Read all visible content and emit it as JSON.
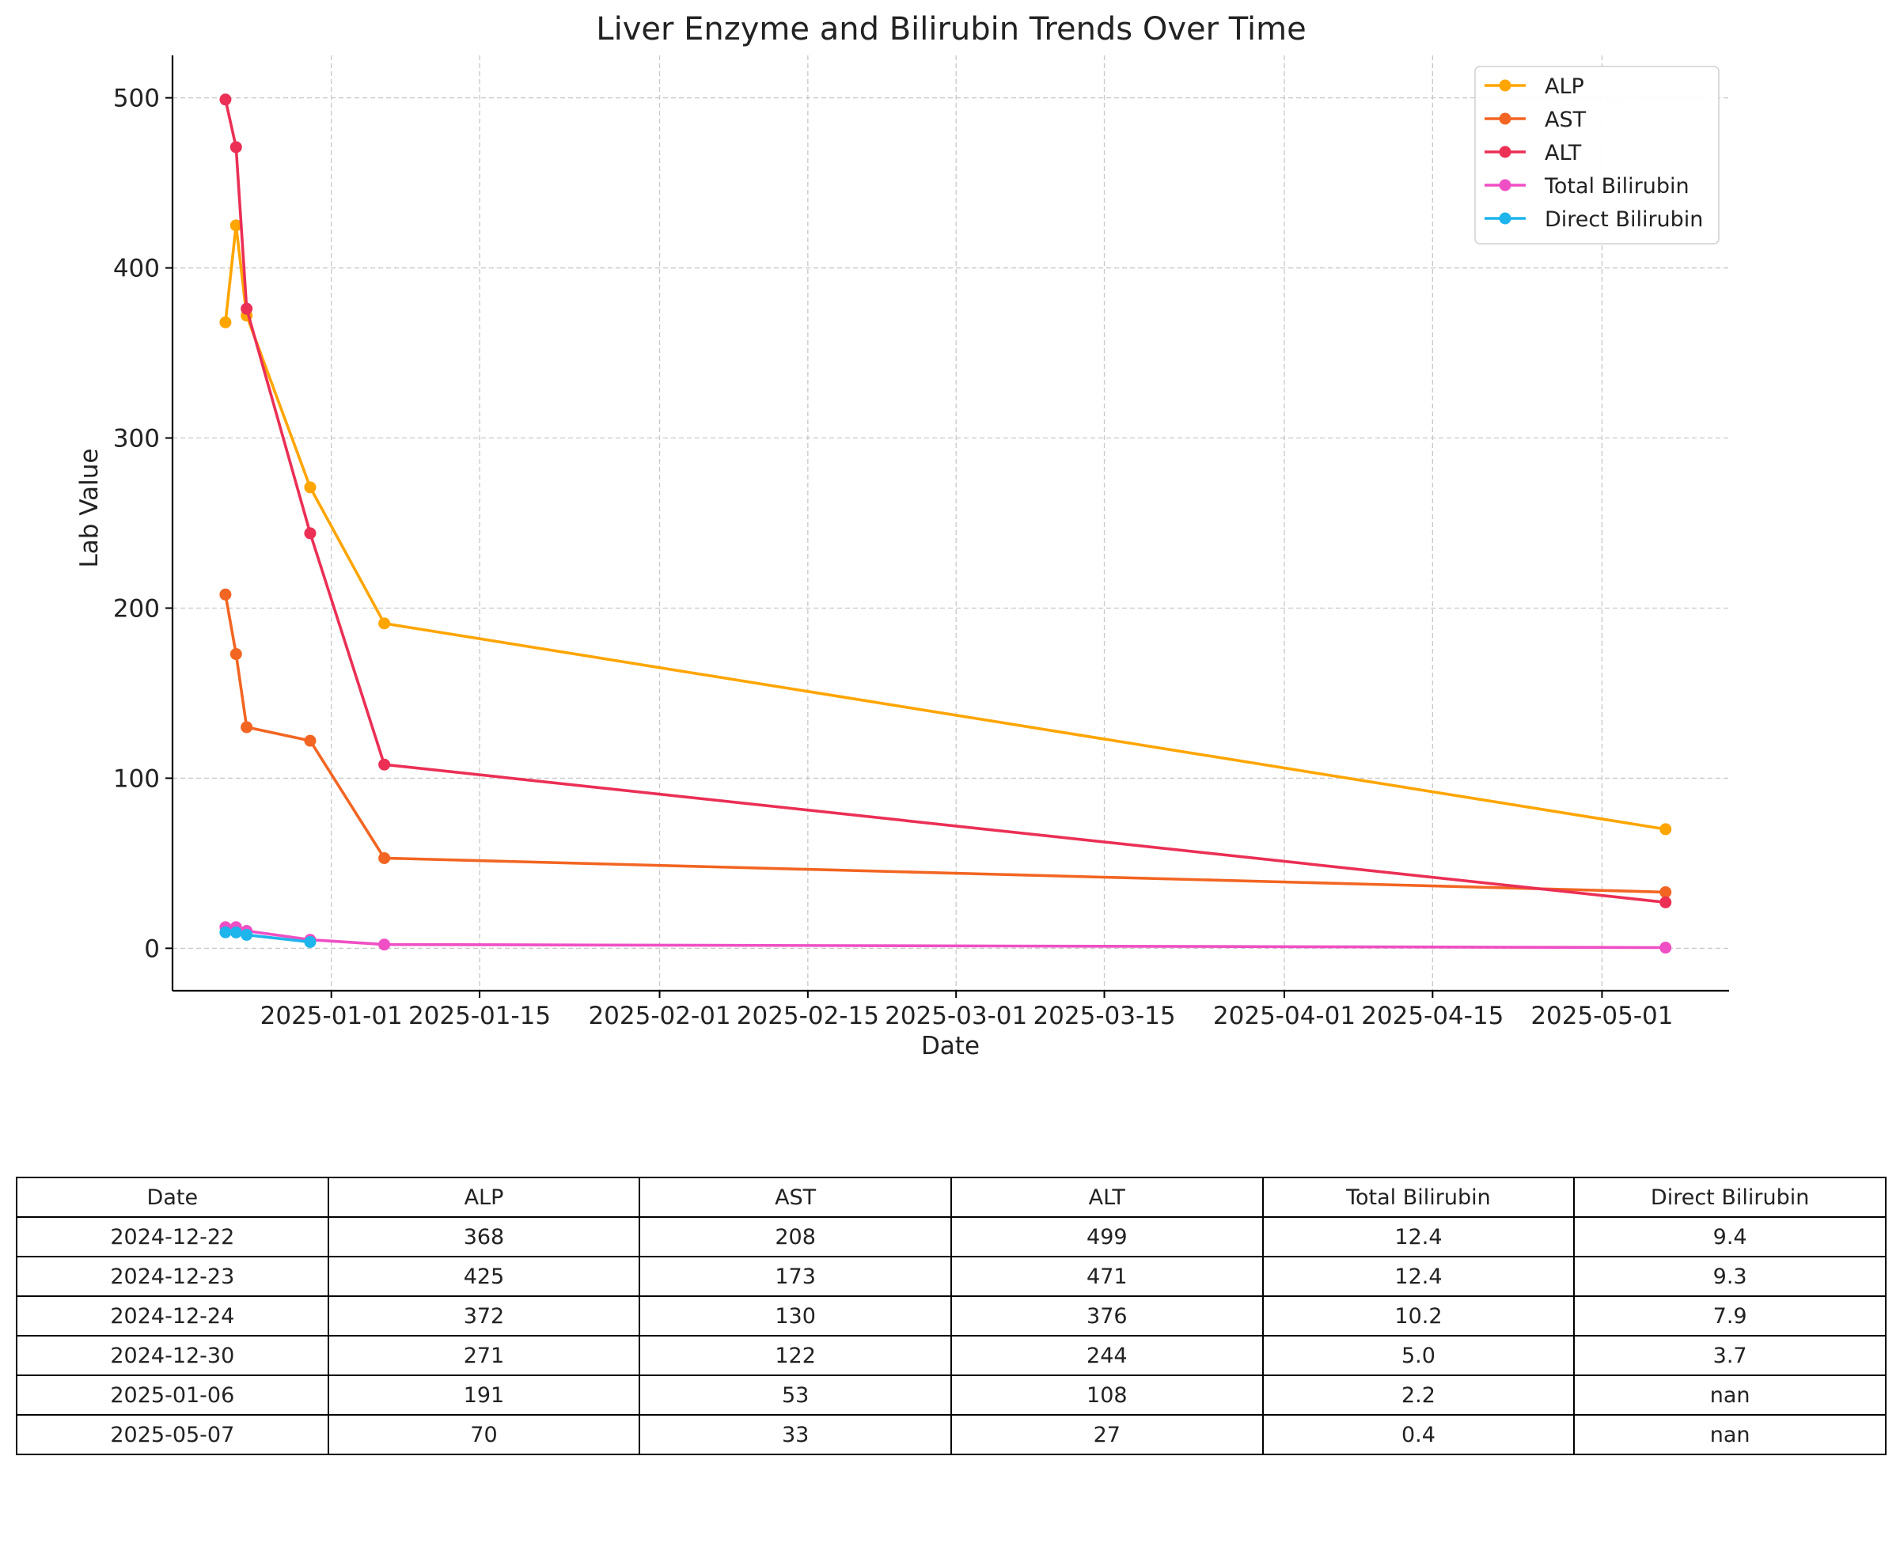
{
  "chart_data": {
    "type": "line",
    "title": "Liver Enzyme and Bilirubin Trends Over Time",
    "xlabel": "Date",
    "ylabel": "Lab Value",
    "x": [
      "2024-12-22",
      "2024-12-23",
      "2024-12-24",
      "2024-12-30",
      "2025-01-06",
      "2025-05-07"
    ],
    "xlim": [
      "2024-12-17",
      "2025-05-13"
    ],
    "ylim": [
      -24.95,
      524.95
    ],
    "x_ticks": [
      "2025-01-01",
      "2025-01-15",
      "2025-02-01",
      "2025-02-15",
      "2025-03-01",
      "2025-03-15",
      "2025-04-01",
      "2025-04-15",
      "2025-05-01"
    ],
    "y_ticks": [
      0,
      100,
      200,
      300,
      400,
      500
    ],
    "grid": true,
    "legend_position": "top-right",
    "series": [
      {
        "name": "ALP",
        "color": "#FFA500",
        "values": [
          368,
          425,
          372,
          271,
          191,
          70
        ]
      },
      {
        "name": "AST",
        "color": "#F26522",
        "values": [
          208,
          173,
          130,
          122,
          53,
          33
        ]
      },
      {
        "name": "ALT",
        "color": "#EB2F55",
        "values": [
          499,
          471,
          376,
          244,
          108,
          27
        ]
      },
      {
        "name": "Total Bilirubin",
        "color": "#EF4FC4",
        "values": [
          12.4,
          12.4,
          10.2,
          5.0,
          2.2,
          0.4
        ]
      },
      {
        "name": "Direct Bilirubin",
        "color": "#1EB4EC",
        "values": [
          9.4,
          9.3,
          7.9,
          3.7,
          null,
          null
        ]
      }
    ]
  },
  "table": {
    "headers": [
      "Date",
      "ALP",
      "AST",
      "ALT",
      "Total Bilirubin",
      "Direct Bilirubin"
    ],
    "rows": [
      [
        "2024-12-22",
        "368",
        "208",
        "499",
        "12.4",
        "9.4"
      ],
      [
        "2024-12-23",
        "425",
        "173",
        "471",
        "12.4",
        "9.3"
      ],
      [
        "2024-12-24",
        "372",
        "130",
        "376",
        "10.2",
        "7.9"
      ],
      [
        "2024-12-30",
        "271",
        "122",
        "244",
        "5.0",
        "3.7"
      ],
      [
        "2025-01-06",
        "191",
        "53",
        "108",
        "2.2",
        "nan"
      ],
      [
        "2025-05-07",
        "70",
        "33",
        "27",
        "0.4",
        "nan"
      ]
    ]
  }
}
